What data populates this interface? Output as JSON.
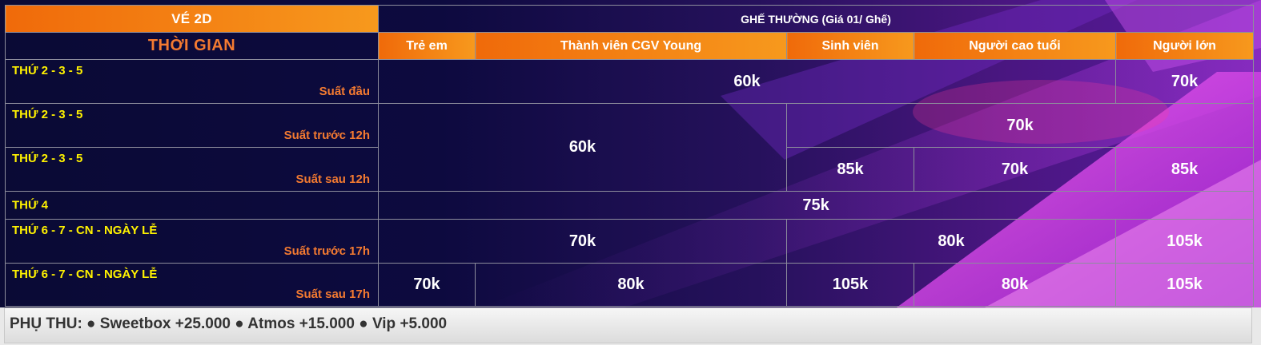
{
  "table": {
    "ticket_type": "VÉ 2D",
    "seat_group": "GHẾ THƯỜNG (Giá 01/ Ghế)",
    "time_header": "THỜI GIAN",
    "columns": [
      "Trẻ em",
      "Thành viên CGV Young",
      "Sinh viên",
      "Người cao tuổi",
      "Người lớn"
    ],
    "rows": [
      {
        "day": "THỨ 2 - 3 - 5",
        "session": "Suất đầu"
      },
      {
        "day": "THỨ 2 - 3 - 5",
        "session": "Suất trước 12h"
      },
      {
        "day": "THỨ 2 - 3 - 5",
        "session": "Suất sau 12h"
      },
      {
        "day": "THỨ 4",
        "session": ""
      },
      {
        "day": "THỨ 6 - 7 - CN - NGÀY LỄ",
        "session": "Suất trước 17h"
      },
      {
        "day": "THỨ 6 - 7 - CN - NGÀY LỄ",
        "session": "Suất sau 17h"
      }
    ],
    "prices": {
      "r1_first_four": "60k",
      "r1_adult": "70k",
      "r2r3_kids_young": "60k",
      "r2_rest": "70k",
      "r3_student": "85k",
      "r3_senior": "70k",
      "r3_adult": "85k",
      "r4_all": "75k",
      "r5_kids_young": "70k",
      "r5_student_senior": "80k",
      "r5_adult": "105k",
      "r6_kids": "70k",
      "r6_young": "80k",
      "r6_student": "105k",
      "r6_senior": "80k",
      "r6_adult": "105k"
    }
  },
  "surcharge": {
    "text": "PHỤ THU: ● Sweetbox +25.000 ● Atmos +15.000 ● Vip +5.000"
  },
  "colors": {
    "orange_header": "#f37a31",
    "day_yellow": "#fff200",
    "bg_dark": "#0d0a3a",
    "bg_magenta": "#e23cd8"
  }
}
